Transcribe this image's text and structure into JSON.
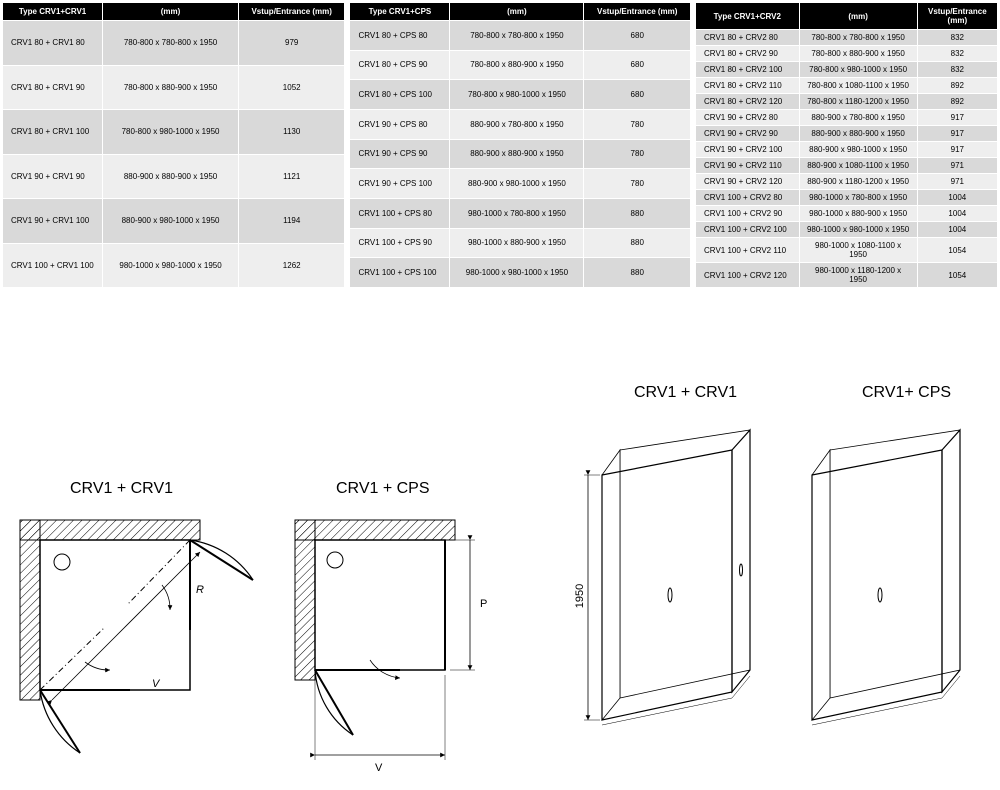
{
  "colors": {
    "header_bg": "#000000",
    "header_fg": "#ffffff",
    "row_odd": "#d9d9d9",
    "row_even": "#eeeeee",
    "stroke": "#000000"
  },
  "table1": {
    "headers": [
      "Type CRV1+CRV1",
      "(mm)",
      "Vstup/Entrance (mm)"
    ],
    "rows": [
      [
        "CRV1 80 + CRV1 80",
        "780-800 x 780-800 x 1950",
        "979"
      ],
      [
        "CRV1 80 + CRV1 90",
        "780-800 x 880-900 x 1950",
        "1052"
      ],
      [
        "CRV1 80 + CRV1 100",
        "780-800 x 980-1000 x 1950",
        "1130"
      ],
      [
        "CRV1 90 + CRV1 90",
        "880-900 x 880-900 x 1950",
        "1121"
      ],
      [
        "CRV1 90 + CRV1 100",
        "880-900 x 980-1000 x 1950",
        "1194"
      ],
      [
        "CRV1 100 + CRV1 100",
        "980-1000 x 980-1000 x 1950",
        "1262"
      ]
    ]
  },
  "table2": {
    "headers": [
      "Type CRV1+CPS",
      "(mm)",
      "Vstup/Entrance (mm)"
    ],
    "rows": [
      [
        "CRV1 80 + CPS 80",
        "780-800 x 780-800 x 1950",
        "680"
      ],
      [
        "CRV1 80 + CPS 90",
        "780-800 x 880-900 x 1950",
        "680"
      ],
      [
        "CRV1 80 + CPS 100",
        "780-800 x 980-1000 x 1950",
        "680"
      ],
      [
        "CRV1 90 + CPS 80",
        "880-900 x 780-800 x 1950",
        "780"
      ],
      [
        "CRV1 90 + CPS 90",
        "880-900 x 880-900 x 1950",
        "780"
      ],
      [
        "CRV1 90 + CPS 100",
        "880-900 x 980-1000 x 1950",
        "780"
      ],
      [
        "CRV1 100 + CPS 80",
        "980-1000 x 780-800 x 1950",
        "880"
      ],
      [
        "CRV1 100 + CPS 90",
        "980-1000 x 880-900 x 1950",
        "880"
      ],
      [
        "CRV1 100 + CPS 100",
        "980-1000 x 980-1000 x 1950",
        "880"
      ]
    ]
  },
  "table3": {
    "headers": [
      "Type CRV1+CRV2",
      "(mm)",
      "Vstup/Entrance (mm)"
    ],
    "rows": [
      [
        "CRV1 80 + CRV2 80",
        "780-800 x 780-800 x 1950",
        "832"
      ],
      [
        "CRV1 80 + CRV2 90",
        "780-800 x 880-900 x 1950",
        "832"
      ],
      [
        "CRV1 80 + CRV2 100",
        "780-800 x 980-1000 x 1950",
        "832"
      ],
      [
        "CRV1 80 + CRV2 110",
        "780-800 x 1080-1100 x 1950",
        "892"
      ],
      [
        "CRV1 80 + CRV2 120",
        "780-800 x 1180-1200 x 1950",
        "892"
      ],
      [
        "CRV1 90 + CRV2 80",
        "880-900 x 780-800 x 1950",
        "917"
      ],
      [
        "CRV1 90 + CRV2 90",
        "880-900 x 880-900 x 1950",
        "917"
      ],
      [
        "CRV1 90 + CRV2 100",
        "880-900 x 980-1000 x 1950",
        "917"
      ],
      [
        "CRV1 90 + CRV2 110",
        "880-900 x 1080-1100 x 1950",
        "971"
      ],
      [
        "CRV1 90 + CRV2 120",
        "880-900 x 1180-1200 x 1950",
        "971"
      ],
      [
        "CRV1 100 + CRV2 80",
        "980-1000 x 780-800 x 1950",
        "1004"
      ],
      [
        "CRV1 100 + CRV2 90",
        "980-1000 x 880-900 x 1950",
        "1004"
      ],
      [
        "CRV1 100 + CRV2 100",
        "980-1000 x 980-1000 x 1950",
        "1004"
      ],
      [
        "CRV1 100 + CRV2 110",
        "980-1000 x 1080-1100 x 1950",
        "1054"
      ],
      [
        "CRV1 100 + CRV2 120",
        "980-1000 x 1180-1200 x 1950",
        "1054"
      ]
    ]
  },
  "diagramLabels": {
    "d1": "CRV1 + CRV1",
    "d2": "CRV1 + CPS",
    "d3": "CRV1 + CRV1",
    "d4": "CRV1+ CPS",
    "height": "1950",
    "v1": "V",
    "r1": "R",
    "v2": "V",
    "p2": "P"
  }
}
